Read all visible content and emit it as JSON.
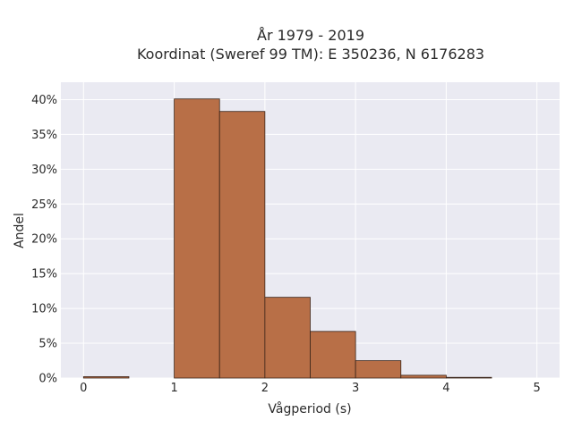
{
  "chart_data": {
    "type": "bar",
    "title_lines": [
      "År 1979 - 2019",
      "Koordinat (Sweref 99 TM): E 350236, N 6176283"
    ],
    "xlabel": "Vågperiod (s)",
    "ylabel": "Andel",
    "bin_width": 0.5,
    "bins": [
      {
        "start": 0.0,
        "end": 0.5,
        "value": 0.2
      },
      {
        "start": 1.0,
        "end": 1.5,
        "value": 40.1
      },
      {
        "start": 1.5,
        "end": 2.0,
        "value": 38.3
      },
      {
        "start": 2.0,
        "end": 2.5,
        "value": 11.6
      },
      {
        "start": 2.5,
        "end": 3.0,
        "value": 6.7
      },
      {
        "start": 3.0,
        "end": 3.5,
        "value": 2.5
      },
      {
        "start": 3.5,
        "end": 4.0,
        "value": 0.4
      },
      {
        "start": 4.0,
        "end": 4.5,
        "value": 0.1
      }
    ],
    "xlim": [
      -0.25,
      5.25
    ],
    "ylim": [
      0,
      42.5
    ],
    "x_ticks": [
      0,
      1,
      2,
      3,
      4,
      5
    ],
    "x_tick_labels": [
      "0",
      "1",
      "2",
      "3",
      "4",
      "5"
    ],
    "y_ticks": [
      0,
      5,
      10,
      15,
      20,
      25,
      30,
      35,
      40
    ],
    "y_tick_labels": [
      "0%",
      "5%",
      "10%",
      "15%",
      "20%",
      "25%",
      "30%",
      "35%",
      "40%"
    ],
    "grid": true,
    "colors": {
      "bar_fill": "#B86F47",
      "bar_stroke": "#3a2418",
      "plot_bg": "#EAEAF2",
      "grid": "#ffffff"
    }
  }
}
